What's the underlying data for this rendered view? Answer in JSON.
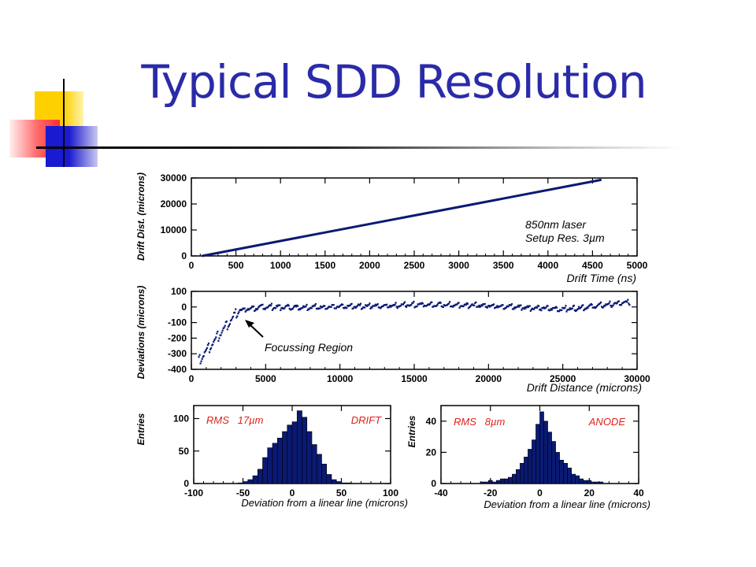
{
  "slide": {
    "title": "Typical SDD Resolution"
  },
  "colors": {
    "title": "#2b2ba8",
    "data": "#0a1a73",
    "annotation": "#e0201c",
    "accent_yellow": "#ffd000",
    "accent_red": "#ff3030",
    "accent_blue": "#2020c0"
  },
  "chart_data": [
    {
      "type": "line",
      "xlabel": "Drift Time (ns)",
      "ylabel": "Drift Dist. (microns)",
      "xlim": [
        0,
        5000
      ],
      "ylim": [
        0,
        30000
      ],
      "xticks": [
        "0",
        "500",
        "1000",
        "1500",
        "2000",
        "2500",
        "3000",
        "3500",
        "4000",
        "4500",
        "5000"
      ],
      "yticks": [
        "0",
        "10000",
        "20000",
        "30000"
      ],
      "annotations": [
        "850nm laser",
        "Setup Res. 3µm"
      ],
      "series": [
        {
          "x": [
            120,
            4600
          ],
          "y": [
            0,
            29300
          ]
        }
      ]
    },
    {
      "type": "scatter",
      "xlabel": "Drift Distance (microns)",
      "ylabel": "Deviations  (microns)",
      "xlim": [
        0,
        30000
      ],
      "ylim": [
        -400,
        100
      ],
      "xticks": [
        "0",
        "5000",
        "10000",
        "15000",
        "20000",
        "25000",
        "30000"
      ],
      "yticks": [
        "100",
        "0",
        "-100",
        "-200",
        "-300",
        "-400"
      ],
      "annotations": [
        "Focussing Region"
      ],
      "profile": {
        "x": [
          500,
          3200,
          5000,
          10000,
          15000,
          20000,
          25000,
          29500
        ],
        "y": [
          -340,
          -20,
          0,
          0,
          15,
          10,
          -15,
          30
        ]
      }
    },
    {
      "type": "bar",
      "xlabel": "Deviation from a linear line (microns)",
      "ylabel": "Entries",
      "xlim": [
        -100,
        100
      ],
      "ylim": [
        0,
        120
      ],
      "xticks": [
        "-100",
        "-50",
        "0",
        "50",
        "100"
      ],
      "yticks": [
        "0",
        "50",
        "100"
      ],
      "annotations": [
        "RMS   17µm",
        "DRIFT"
      ],
      "bin_width": 5,
      "bins": [
        -55,
        -50,
        -45,
        -40,
        -35,
        -30,
        -25,
        -20,
        -15,
        -10,
        -5,
        0,
        5,
        10,
        15,
        20,
        25,
        30,
        35,
        40,
        45,
        50,
        55
      ],
      "values": [
        1,
        3,
        6,
        12,
        22,
        40,
        55,
        62,
        70,
        80,
        90,
        95,
        112,
        102,
        80,
        60,
        45,
        30,
        14,
        6,
        3,
        1,
        1
      ]
    },
    {
      "type": "bar",
      "xlabel": "Deviation from a linear line (microns)",
      "ylabel": "Entries",
      "xlim": [
        -40,
        40
      ],
      "ylim": [
        0,
        50
      ],
      "xticks": [
        "-40",
        "-20",
        "0",
        "20",
        "40"
      ],
      "yticks": [
        "0",
        "20",
        "40"
      ],
      "annotations": [
        "RMS   8µm",
        "ANODE"
      ],
      "bin_width": 1.6,
      "bins": [
        -24,
        -22.4,
        -20.8,
        -19.2,
        -17.6,
        -16,
        -14.4,
        -12.8,
        -11.2,
        -9.6,
        -8,
        -6.4,
        -4.8,
        -3.2,
        -1.6,
        0,
        1.6,
        3.2,
        4.8,
        6.4,
        8,
        9.6,
        11.2,
        12.8,
        14.4,
        16,
        17.6,
        19.2,
        20.8,
        22.4,
        24
      ],
      "values": [
        1,
        1,
        2,
        1,
        2,
        3,
        3,
        4,
        6,
        9,
        13,
        17,
        22,
        28,
        38,
        46,
        40,
        33,
        27,
        20,
        15,
        13,
        10,
        6,
        5,
        3,
        2,
        2,
        1,
        1,
        1
      ]
    }
  ]
}
